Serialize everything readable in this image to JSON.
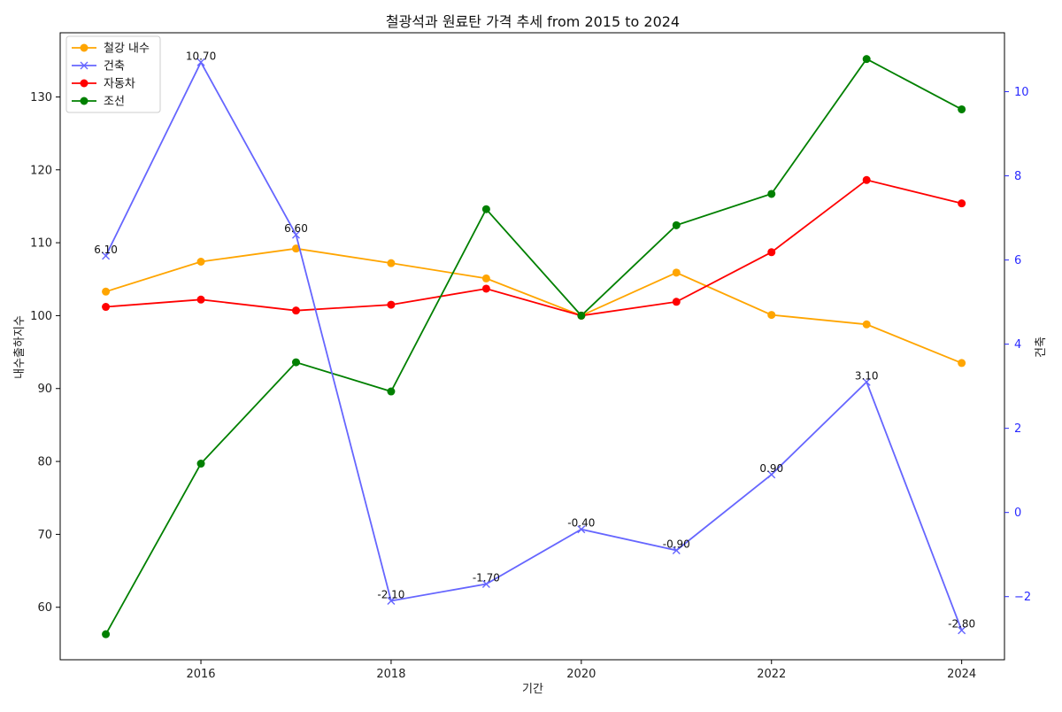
{
  "chart_data": {
    "type": "line",
    "title": "철광석과 원료탄 가격 추세 from 2015 to 2024",
    "xlabel": "기간",
    "ylabel_left": "내수출하지수",
    "ylabel_right": "건축",
    "x": [
      2015,
      2016,
      2017,
      2018,
      2019,
      2020,
      2021,
      2022,
      2023,
      2024
    ],
    "x_ticks": [
      "2016",
      "2018",
      "2020",
      "2022",
      "2024"
    ],
    "x_tick_values": [
      2016,
      2018,
      2020,
      2022,
      2024
    ],
    "xlim": [
      2014.52,
      2024.45
    ],
    "ylim_left": [
      52.8,
      138.8
    ],
    "y_left_ticks": [
      "60",
      "70",
      "80",
      "90",
      "100",
      "110",
      "120",
      "130"
    ],
    "y_left_tick_values": [
      60,
      70,
      80,
      90,
      100,
      110,
      120,
      130
    ],
    "ylim_right": [
      -3.5,
      11.4
    ],
    "y_right_ticks": [
      "−2",
      "0",
      "2",
      "4",
      "6",
      "8",
      "10"
    ],
    "y_right_tick_values": [
      -2,
      0,
      2,
      4,
      6,
      8,
      10
    ],
    "grid": false,
    "legend_position": "top-left",
    "series": [
      {
        "name": "철강 내수",
        "axis": "left",
        "color": "#ffa500",
        "marker": "circle",
        "values": [
          103.3,
          107.4,
          109.2,
          107.2,
          105.1,
          100.0,
          105.9,
          100.1,
          98.8,
          93.5
        ]
      },
      {
        "name": "건축",
        "axis": "right",
        "color": "#6666ff",
        "marker": "x",
        "values": [
          6.1,
          10.7,
          6.6,
          -2.1,
          -1.7,
          -0.4,
          -0.9,
          0.9,
          3.1,
          -2.8
        ],
        "data_labels": [
          "6.10",
          "10.70",
          "6.60",
          "-2.10",
          "-1.70",
          "-0.40",
          "-0.90",
          "0.90",
          "3.10",
          "-2.80"
        ]
      },
      {
        "name": "자동차",
        "axis": "left",
        "color": "#ff0000",
        "marker": "circle",
        "values": [
          101.2,
          102.2,
          100.7,
          101.5,
          103.7,
          100.0,
          101.9,
          108.7,
          118.6,
          115.4
        ]
      },
      {
        "name": "조선",
        "axis": "left",
        "color": "#008000",
        "marker": "circle",
        "values": [
          56.3,
          79.7,
          93.6,
          89.6,
          114.6,
          100.0,
          112.4,
          116.7,
          135.2,
          128.3
        ]
      }
    ]
  }
}
